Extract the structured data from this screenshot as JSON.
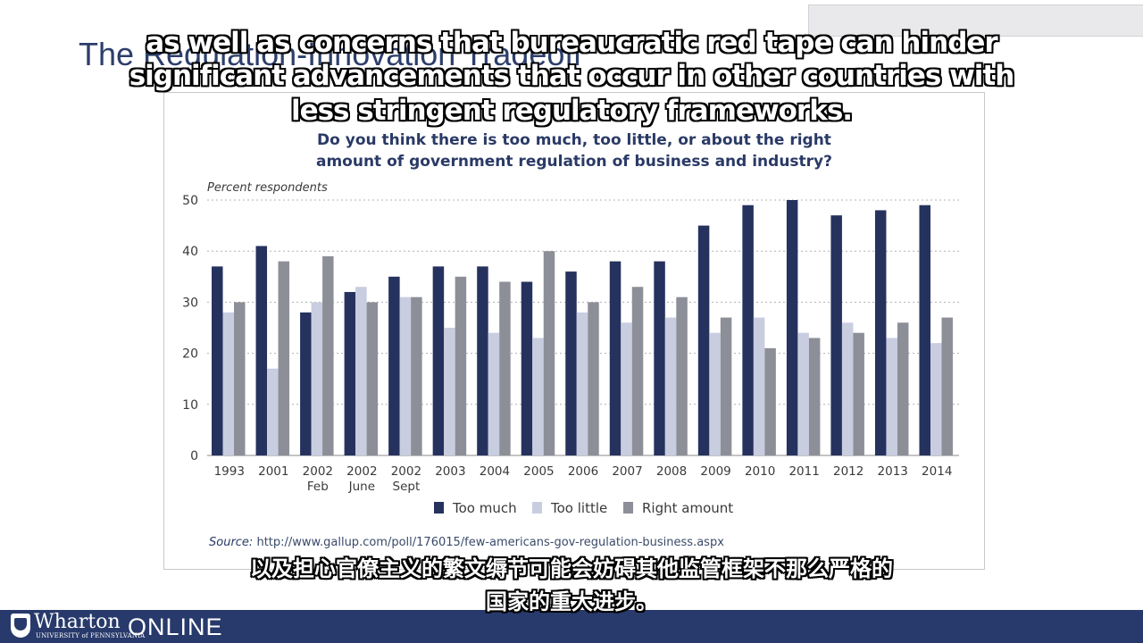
{
  "slide": {
    "title": "The Regulation-Innovation Tradeoff"
  },
  "chart_data": {
    "type": "bar",
    "title": "Do you think there is too much, too little, or about the right amount of government regulation of business and industry?",
    "title_lines": [
      "Do you think there is too much, too little, or about the right",
      "amount of government regulation of business and industry?"
    ],
    "ylabel": "Percent respondents",
    "ylim": [
      0,
      50
    ],
    "yticks": [
      0,
      10,
      20,
      30,
      40,
      50
    ],
    "grid": true,
    "legend_position": "bottom",
    "categories": [
      [
        "1993"
      ],
      [
        "2001"
      ],
      [
        "2002",
        "Feb"
      ],
      [
        "2002",
        "June"
      ],
      [
        "2002",
        "Sept"
      ],
      [
        "2003"
      ],
      [
        "2004"
      ],
      [
        "2005"
      ],
      [
        "2006"
      ],
      [
        "2007"
      ],
      [
        "2008"
      ],
      [
        "2009"
      ],
      [
        "2010"
      ],
      [
        "2011"
      ],
      [
        "2012"
      ],
      [
        "2013"
      ],
      [
        "2014"
      ]
    ],
    "series": [
      {
        "name": "Too much",
        "color": "#26325e",
        "values": [
          37,
          41,
          28,
          32,
          35,
          37,
          37,
          34,
          36,
          38,
          38,
          45,
          49,
          50,
          47,
          48,
          49
        ]
      },
      {
        "name": "Too little",
        "color": "#c9cde0",
        "values": [
          28,
          17,
          30,
          33,
          31,
          25,
          24,
          23,
          28,
          26,
          27,
          24,
          27,
          24,
          26,
          23,
          22
        ]
      },
      {
        "name": "Right amount",
        "color": "#8d8f98",
        "values": [
          30,
          38,
          39,
          30,
          31,
          35,
          34,
          40,
          30,
          33,
          31,
          27,
          21,
          23,
          24,
          26,
          27
        ]
      }
    ],
    "source_label": "Source:",
    "source_url": "http://www.gallup.com/poll/176015/few-americans-gov-regulation-business.aspx"
  },
  "subtitles": {
    "english": [
      "as well as concerns that bureaucratic red tape can hinder",
      "significant advancements that occur in other countries with",
      "less stringent regulatory frameworks."
    ],
    "chinese": [
      "以及担心官僚主义的繁文缛节可能会妨碍其他监管框架不那么严格的",
      "国家的重大进步。"
    ]
  },
  "footer": {
    "brand": "Wharton",
    "brand_sub": "UNIVERSITY of PENNSYLVANIA",
    "online": "ONLINE",
    "bg_color": "#283a6b"
  }
}
